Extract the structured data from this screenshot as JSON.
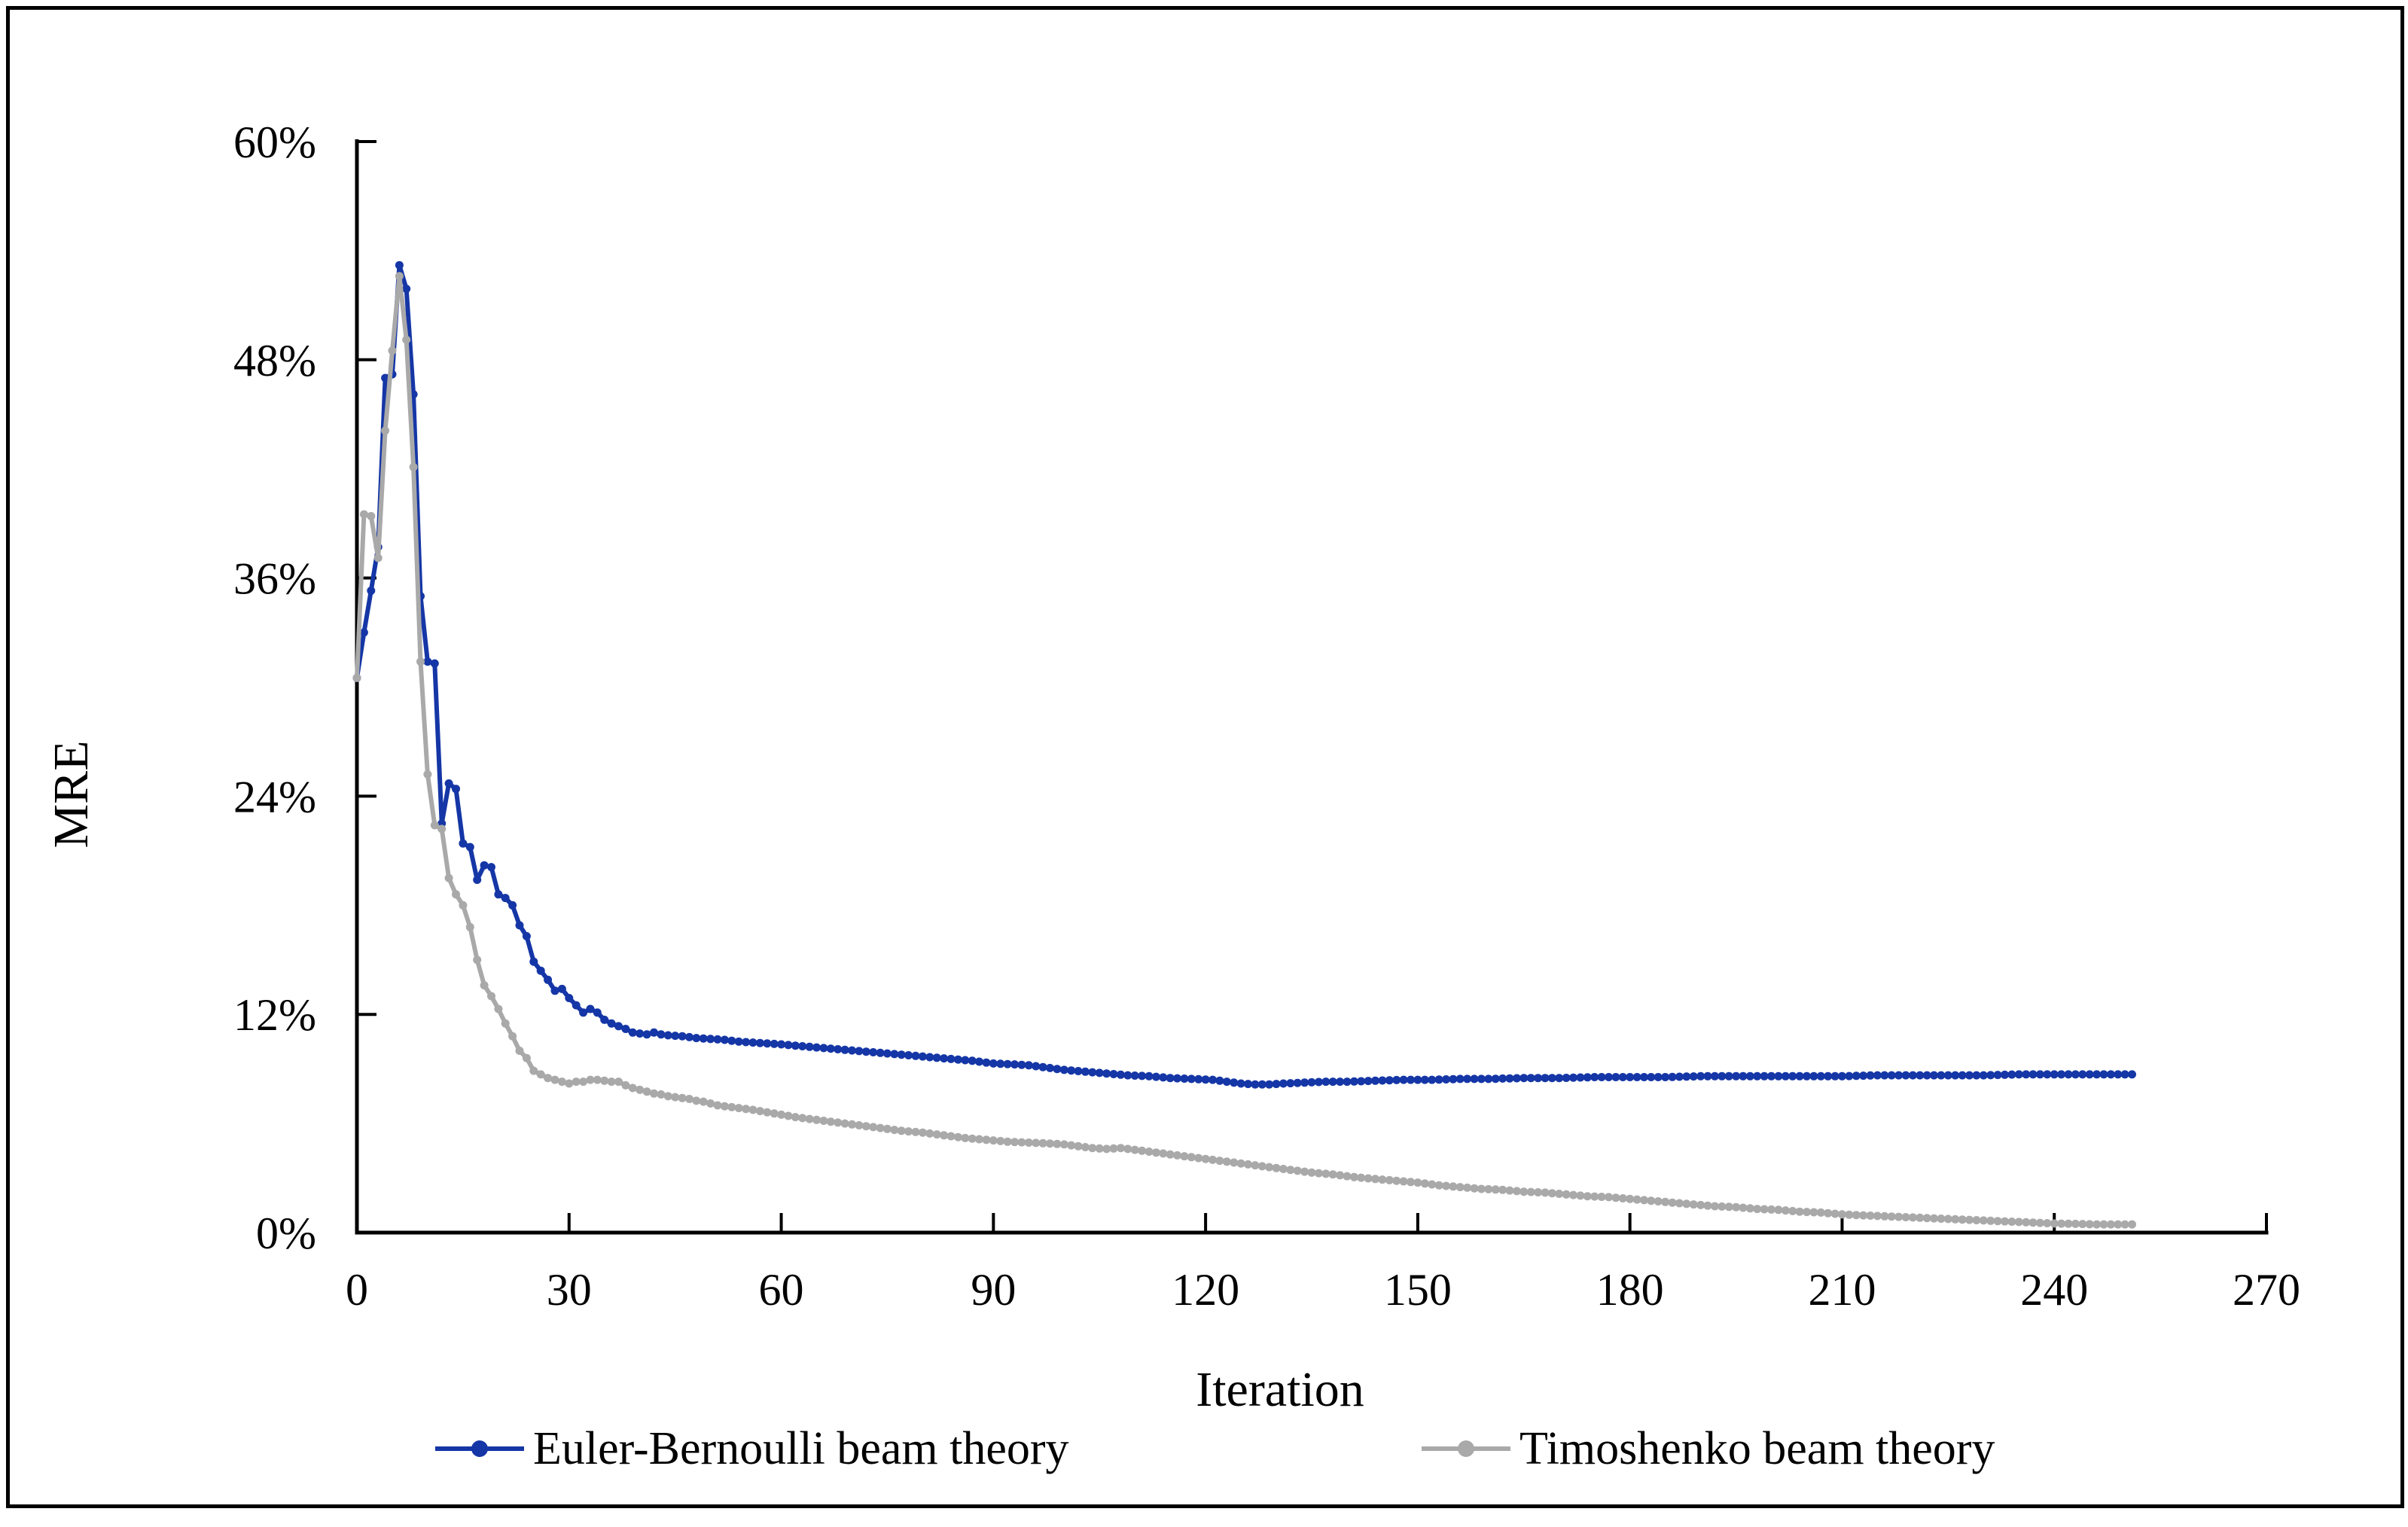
{
  "chart_data": {
    "type": "line",
    "title": "",
    "xlabel": "Iteration",
    "ylabel": "MRE",
    "xlim": [
      0,
      270
    ],
    "ylim": [
      0,
      60
    ],
    "grid": false,
    "legend_position": "bottom",
    "x_ticks": [
      0,
      30,
      60,
      90,
      120,
      150,
      180,
      210,
      240,
      270
    ],
    "x_tick_labels": [
      "0",
      "30",
      "60",
      "90",
      "120",
      "150",
      "180",
      "210",
      "240",
      "270"
    ],
    "y_ticks": [
      0,
      12,
      24,
      36,
      48,
      60
    ],
    "y_tick_labels": [
      "0%",
      "12%",
      "24%",
      "36%",
      "48%",
      "60%"
    ],
    "axis_color": "#000000",
    "series": [
      {
        "name": "Euler-Bernoulli beam theory",
        "color": "#1536A6",
        "marker": "circle",
        "x_step": 1,
        "x_end": 251,
        "keypoints": [
          [
            0,
            30.5
          ],
          [
            1,
            33.0
          ],
          [
            2,
            35.3
          ],
          [
            3,
            37.7
          ],
          [
            4,
            47.0
          ],
          [
            5,
            47.2
          ],
          [
            6,
            53.2
          ],
          [
            7,
            51.9
          ],
          [
            8,
            46.1
          ],
          [
            9,
            35.0
          ],
          [
            10,
            31.4
          ],
          [
            11,
            31.3
          ],
          [
            12,
            22.5
          ],
          [
            13,
            24.7
          ],
          [
            14,
            24.4
          ],
          [
            15,
            21.4
          ],
          [
            16,
            21.2
          ],
          [
            17,
            19.4
          ],
          [
            18,
            20.2
          ],
          [
            19,
            20.1
          ],
          [
            20,
            18.6
          ],
          [
            21,
            18.4
          ],
          [
            22,
            18.0
          ],
          [
            23,
            16.9
          ],
          [
            24,
            16.3
          ],
          [
            25,
            14.9
          ],
          [
            26,
            14.4
          ],
          [
            27,
            13.9
          ],
          [
            28,
            13.3
          ],
          [
            29,
            13.4
          ],
          [
            30,
            12.9
          ],
          [
            31,
            12.5
          ],
          [
            32,
            12.1
          ],
          [
            33,
            12.3
          ],
          [
            34,
            12.1
          ],
          [
            35,
            11.7
          ],
          [
            36,
            11.5
          ],
          [
            37,
            11.35
          ],
          [
            38,
            11.2
          ],
          [
            39,
            11.0
          ],
          [
            40,
            10.95
          ],
          [
            41,
            10.9
          ],
          [
            42,
            11.0
          ],
          [
            43,
            10.9
          ],
          [
            44,
            10.85
          ],
          [
            46,
            10.8
          ],
          [
            48,
            10.7
          ],
          [
            50,
            10.65
          ],
          [
            52,
            10.6
          ],
          [
            54,
            10.5
          ],
          [
            56,
            10.45
          ],
          [
            58,
            10.4
          ],
          [
            60,
            10.35
          ],
          [
            63,
            10.25
          ],
          [
            66,
            10.15
          ],
          [
            69,
            10.05
          ],
          [
            72,
            9.95
          ],
          [
            75,
            9.85
          ],
          [
            78,
            9.75
          ],
          [
            81,
            9.65
          ],
          [
            84,
            9.55
          ],
          [
            87,
            9.45
          ],
          [
            90,
            9.3
          ],
          [
            93,
            9.25
          ],
          [
            95,
            9.2
          ],
          [
            97,
            9.1
          ],
          [
            100,
            8.95
          ],
          [
            103,
            8.85
          ],
          [
            106,
            8.75
          ],
          [
            109,
            8.65
          ],
          [
            112,
            8.6
          ],
          [
            115,
            8.5
          ],
          [
            118,
            8.45
          ],
          [
            121,
            8.4
          ],
          [
            123,
            8.3
          ],
          [
            125,
            8.2
          ],
          [
            127,
            8.15
          ],
          [
            129,
            8.15
          ],
          [
            131,
            8.2
          ],
          [
            134,
            8.25
          ],
          [
            137,
            8.3
          ],
          [
            140,
            8.3
          ],
          [
            144,
            8.35
          ],
          [
            148,
            8.4
          ],
          [
            152,
            8.4
          ],
          [
            156,
            8.45
          ],
          [
            160,
            8.45
          ],
          [
            165,
            8.5
          ],
          [
            170,
            8.5
          ],
          [
            175,
            8.55
          ],
          [
            180,
            8.55
          ],
          [
            185,
            8.55
          ],
          [
            190,
            8.6
          ],
          [
            195,
            8.6
          ],
          [
            200,
            8.6
          ],
          [
            205,
            8.6
          ],
          [
            210,
            8.6
          ],
          [
            215,
            8.65
          ],
          [
            220,
            8.65
          ],
          [
            225,
            8.65
          ],
          [
            230,
            8.65
          ],
          [
            235,
            8.7
          ],
          [
            240,
            8.7
          ],
          [
            245,
            8.7
          ],
          [
            251,
            8.7
          ]
        ]
      },
      {
        "name": "Timoshenko beam theory",
        "color": "#A9A9A9",
        "marker": "circle",
        "x_step": 1,
        "x_end": 251,
        "keypoints": [
          [
            0,
            30.5
          ],
          [
            1,
            39.5
          ],
          [
            2,
            39.4
          ],
          [
            3,
            37.1
          ],
          [
            4,
            44.1
          ],
          [
            5,
            48.5
          ],
          [
            6,
            52.6
          ],
          [
            7,
            49.1
          ],
          [
            8,
            42.1
          ],
          [
            9,
            31.4
          ],
          [
            10,
            25.2
          ],
          [
            11,
            22.4
          ],
          [
            12,
            22.2
          ],
          [
            13,
            19.5
          ],
          [
            14,
            18.6
          ],
          [
            15,
            18.0
          ],
          [
            16,
            16.8
          ],
          [
            17,
            15.0
          ],
          [
            18,
            13.6
          ],
          [
            19,
            13.0
          ],
          [
            20,
            12.3
          ],
          [
            21,
            11.5
          ],
          [
            22,
            10.8
          ],
          [
            23,
            10.0
          ],
          [
            24,
            9.6
          ],
          [
            25,
            8.9
          ],
          [
            26,
            8.7
          ],
          [
            27,
            8.5
          ],
          [
            28,
            8.4
          ],
          [
            29,
            8.3
          ],
          [
            30,
            8.2
          ],
          [
            31,
            8.3
          ],
          [
            32,
            8.3
          ],
          [
            33,
            8.4
          ],
          [
            34,
            8.4
          ],
          [
            35,
            8.35
          ],
          [
            36,
            8.3
          ],
          [
            37,
            8.3
          ],
          [
            38,
            8.1
          ],
          [
            39,
            7.95
          ],
          [
            40,
            7.85
          ],
          [
            41,
            7.75
          ],
          [
            42,
            7.65
          ],
          [
            43,
            7.6
          ],
          [
            44,
            7.5
          ],
          [
            45,
            7.45
          ],
          [
            46,
            7.4
          ],
          [
            47,
            7.35
          ],
          [
            48,
            7.25
          ],
          [
            49,
            7.2
          ],
          [
            50,
            7.1
          ],
          [
            51,
            7.0
          ],
          [
            53,
            6.9
          ],
          [
            56,
            6.75
          ],
          [
            59,
            6.55
          ],
          [
            62,
            6.35
          ],
          [
            65,
            6.2
          ],
          [
            68,
            6.05
          ],
          [
            71,
            5.9
          ],
          [
            74,
            5.75
          ],
          [
            77,
            5.6
          ],
          [
            80,
            5.5
          ],
          [
            83,
            5.35
          ],
          [
            86,
            5.2
          ],
          [
            89,
            5.1
          ],
          [
            92,
            5.0
          ],
          [
            95,
            4.95
          ],
          [
            98,
            4.9
          ],
          [
            100,
            4.85
          ],
          [
            102,
            4.75
          ],
          [
            104,
            4.65
          ],
          [
            106,
            4.6
          ],
          [
            108,
            4.65
          ],
          [
            110,
            4.55
          ],
          [
            112,
            4.45
          ],
          [
            114,
            4.35
          ],
          [
            116,
            4.25
          ],
          [
            118,
            4.15
          ],
          [
            120,
            4.05
          ],
          [
            123,
            3.9
          ],
          [
            126,
            3.75
          ],
          [
            129,
            3.6
          ],
          [
            132,
            3.45
          ],
          [
            135,
            3.3
          ],
          [
            138,
            3.2
          ],
          [
            141,
            3.05
          ],
          [
            144,
            2.95
          ],
          [
            147,
            2.85
          ],
          [
            150,
            2.75
          ],
          [
            153,
            2.6
          ],
          [
            156,
            2.5
          ],
          [
            159,
            2.4
          ],
          [
            162,
            2.35
          ],
          [
            165,
            2.25
          ],
          [
            168,
            2.2
          ],
          [
            171,
            2.1
          ],
          [
            174,
            2.0
          ],
          [
            177,
            1.95
          ],
          [
            180,
            1.85
          ],
          [
            183,
            1.75
          ],
          [
            186,
            1.65
          ],
          [
            189,
            1.55
          ],
          [
            192,
            1.45
          ],
          [
            195,
            1.4
          ],
          [
            198,
            1.3
          ],
          [
            201,
            1.25
          ],
          [
            204,
            1.15
          ],
          [
            207,
            1.1
          ],
          [
            210,
            1.0
          ],
          [
            213,
            0.95
          ],
          [
            216,
            0.9
          ],
          [
            219,
            0.85
          ],
          [
            222,
            0.8
          ],
          [
            225,
            0.75
          ],
          [
            228,
            0.7
          ],
          [
            231,
            0.65
          ],
          [
            234,
            0.6
          ],
          [
            237,
            0.55
          ],
          [
            240,
            0.5
          ],
          [
            243,
            0.48
          ],
          [
            246,
            0.45
          ],
          [
            251,
            0.45
          ]
        ]
      }
    ]
  },
  "layout_text": {
    "note": ""
  }
}
